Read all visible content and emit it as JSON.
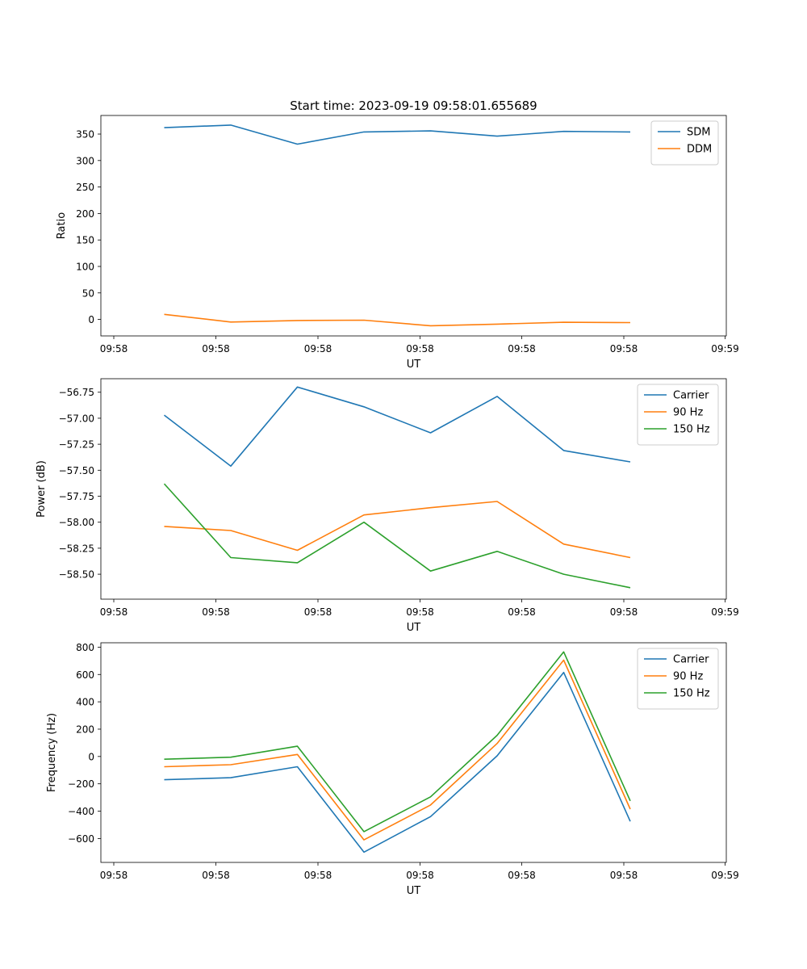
{
  "chart_data": [
    {
      "type": "line",
      "title": "Start time: 2023-09-19 09:58:01.655689",
      "xlabel": "UT",
      "ylabel": "Ratio",
      "x_tick_labels": [
        "09:58",
        "09:58",
        "09:58",
        "09:58",
        "09:58",
        "09:58",
        "09:59"
      ],
      "y_ticks": [
        0,
        50,
        100,
        150,
        200,
        250,
        300,
        350
      ],
      "ylim": [
        -31.2,
        385.1
      ],
      "x": [
        1,
        2,
        3,
        4,
        5,
        6,
        7,
        8
      ],
      "series": [
        {
          "name": "SDM",
          "color": "#1f77b4",
          "values": [
            362,
            367,
            331,
            354,
            356,
            346,
            355,
            354
          ]
        },
        {
          "name": "DDM",
          "color": "#ff7f0e",
          "values": [
            9.5,
            -5,
            -2,
            -1.5,
            -12,
            -9,
            -5.5,
            -6
          ]
        }
      ],
      "legend": "top-right"
    },
    {
      "type": "line",
      "title": "",
      "xlabel": "UT",
      "ylabel": "Power (dB)",
      "x_tick_labels": [
        "09:58",
        "09:58",
        "09:58",
        "09:58",
        "09:58",
        "09:58",
        "09:59"
      ],
      "y_ticks": [
        -58.5,
        -58.25,
        -58,
        -57.75,
        -57.5,
        -57.25,
        -57,
        -56.75
      ],
      "y_tick_labels": [
        "−58.50",
        "−58.25",
        "−58.00",
        "−57.75",
        "−57.50",
        "−57.25",
        "−57.00",
        "−56.75"
      ],
      "ylim": [
        -58.74,
        -56.62
      ],
      "x": [
        1,
        2,
        3,
        4,
        5,
        6,
        7,
        8
      ],
      "series": [
        {
          "name": "Carrier",
          "color": "#1f77b4",
          "values": [
            -56.97,
            -57.46,
            -56.7,
            -56.89,
            -57.14,
            -56.79,
            -57.31,
            -57.42
          ]
        },
        {
          "name": "90 Hz",
          "color": "#ff7f0e",
          "values": [
            -58.04,
            -58.08,
            -58.27,
            -57.93,
            -57.86,
            -57.8,
            -58.21,
            -58.34
          ]
        },
        {
          "name": "150 Hz",
          "color": "#2ca02c",
          "values": [
            -57.63,
            -58.34,
            -58.39,
            -58.0,
            -58.47,
            -58.28,
            -58.5,
            -58.63
          ]
        }
      ],
      "legend": "top-right"
    },
    {
      "type": "line",
      "title": "",
      "xlabel": "UT",
      "ylabel": "Frequency (Hz)",
      "x_tick_labels": [
        "09:58",
        "09:58",
        "09:58",
        "09:58",
        "09:58",
        "09:58",
        "09:59"
      ],
      "y_ticks": [
        -600,
        -400,
        -200,
        0,
        200,
        400,
        600,
        800
      ],
      "y_tick_labels": [
        "−600",
        "−400",
        "−200",
        "0",
        "200",
        "400",
        "600",
        "800"
      ],
      "ylim": [
        -775,
        832
      ],
      "x": [
        1,
        2,
        3,
        4,
        5,
        6,
        7,
        8
      ],
      "series": [
        {
          "name": "Carrier",
          "color": "#1f77b4",
          "values": [
            -170,
            -155,
            -75,
            -700,
            -440,
            5,
            615,
            -475
          ]
        },
        {
          "name": "90 Hz",
          "color": "#ff7f0e",
          "values": [
            -75,
            -60,
            15,
            -610,
            -355,
            95,
            705,
            -385
          ]
        },
        {
          "name": "150 Hz",
          "color": "#2ca02c",
          "values": [
            -20,
            -5,
            75,
            -550,
            -295,
            155,
            765,
            -325
          ]
        }
      ],
      "legend": "top-right"
    }
  ]
}
